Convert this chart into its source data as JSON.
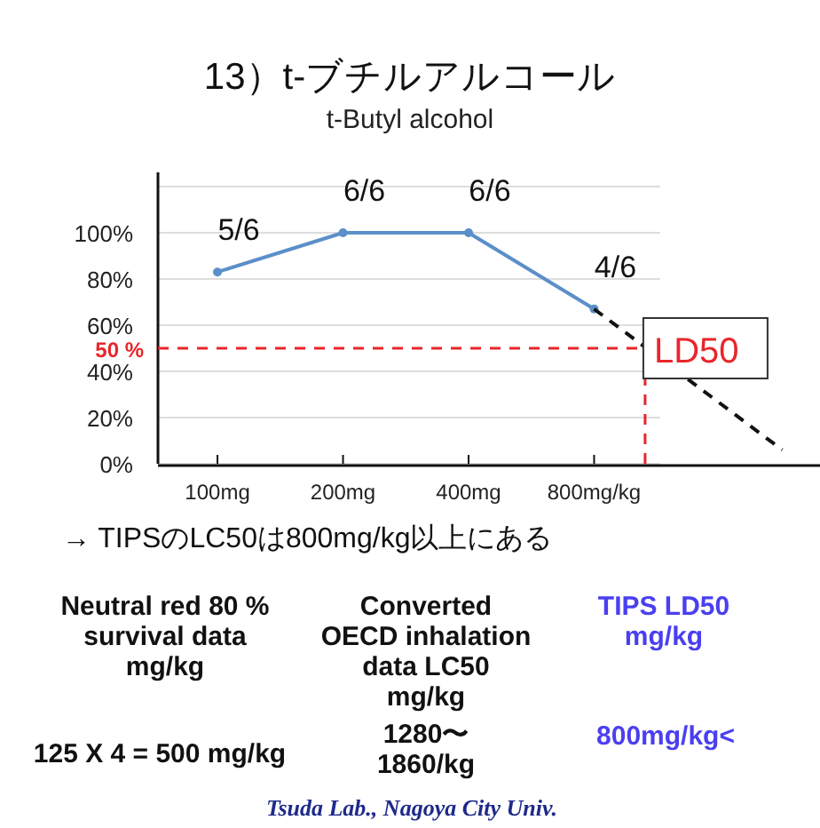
{
  "chart_data": {
    "type": "line",
    "title": "13）t-ブチルアルコール",
    "subtitle": "t-Butyl alcohol",
    "x": [
      100,
      200,
      400,
      800
    ],
    "xlim": [
      72,
      2730
    ],
    "log": "x",
    "xticks": [
      {
        "value": 100,
        "label": "100mg"
      },
      {
        "value": 200,
        "label": "200mg"
      },
      {
        "value": 400,
        "label": "400mg"
      },
      {
        "value": 800,
        "label": "800mg/kg"
      }
    ],
    "ylim": [
      0,
      120
    ],
    "yticks": [
      {
        "value": 0,
        "label": "0%"
      },
      {
        "value": 20,
        "label": "20%"
      },
      {
        "value": 40,
        "label": "40%"
      },
      {
        "value": 60,
        "label": "60%"
      },
      {
        "value": 80,
        "label": "80%"
      },
      {
        "value": 100,
        "label": "100%"
      },
      {
        "value": 120,
        "label": null
      }
    ],
    "grid": "y",
    "marker": "circle",
    "series": [
      {
        "color": "#5b8fc9",
        "values": [
          83,
          100,
          100,
          67
        ],
        "line_style": "solid"
      },
      {
        "type": "line",
        "color": "#111111",
        "x": [
          800,
          2260
        ],
        "values": [
          67,
          6
        ],
        "line_style": "dashed",
        "marker": "none"
      }
    ],
    "ref_lines": [
      {
        "axis": "y",
        "value": 50,
        "label": "50 %",
        "color": "#e8262a",
        "line_style": "dashed"
      },
      {
        "axis": "x",
        "value": 1060,
        "color": "#e8262a",
        "line_style": "dashed"
      }
    ],
    "annotations": [
      "→ TIPSのLC50は800mg/kg以上にある",
      "Neutral red 80 %\nsurvival data\nmg/kg",
      "Converted\nOECD inhalation\ndata LC50\nmg/kg",
      "TIPS LD50\nmg/kg",
      "125 X 4 = 500 mg/kg",
      "1280〜\n1860/kg",
      "800mg/kg<",
      "Tsuda Lab., Nagoya City Univ.",
      {
        "text": "5/6",
        "x": 100,
        "y": 83
      },
      {
        "text": "6/6",
        "x": 200,
        "y": 100
      },
      {
        "text": "6/6",
        "x": 400,
        "y": 100
      },
      {
        "text": "4/6",
        "x": 800,
        "y": 67
      },
      {
        "text": "LD50",
        "x": 1060,
        "y": 50
      }
    ]
  }
}
